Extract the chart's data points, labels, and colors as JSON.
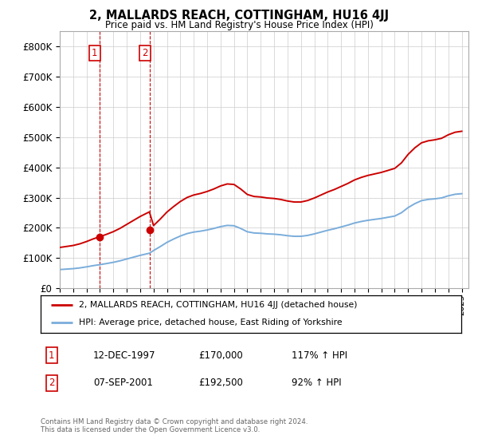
{
  "title": "2, MALLARDS REACH, COTTINGHAM, HU16 4JJ",
  "subtitle": "Price paid vs. HM Land Registry's House Price Index (HPI)",
  "red_label": "2, MALLARDS REACH, COTTINGHAM, HU16 4JJ (detached house)",
  "blue_label": "HPI: Average price, detached house, East Riding of Yorkshire",
  "transaction1_date": "12-DEC-1997",
  "transaction1_price": "£170,000",
  "transaction1_hpi": "117% ↑ HPI",
  "transaction2_date": "07-SEP-2001",
  "transaction2_price": "£192,500",
  "transaction2_hpi": "92% ↑ HPI",
  "footnote": "Contains HM Land Registry data © Crown copyright and database right 2024.\nThis data is licensed under the Open Government Licence v3.0.",
  "ylim": [
    0,
    850000
  ],
  "yticks": [
    0,
    100000,
    200000,
    300000,
    400000,
    500000,
    600000,
    700000,
    800000
  ],
  "ytick_labels": [
    "£0",
    "£100K",
    "£200K",
    "£300K",
    "£400K",
    "£500K",
    "£600K",
    "£700K",
    "£800K"
  ],
  "background_color": "#ffffff",
  "grid_color": "#cccccc",
  "red_color": "#cc0000",
  "blue_color": "#7aaddb",
  "marker1_x": 1997.95,
  "marker1_y": 170000,
  "marker2_x": 2001.69,
  "marker2_y": 192500,
  "vline1_x": 1997.95,
  "vline2_x": 2001.69,
  "xlim_left": 1995.0,
  "xlim_right": 2025.5
}
